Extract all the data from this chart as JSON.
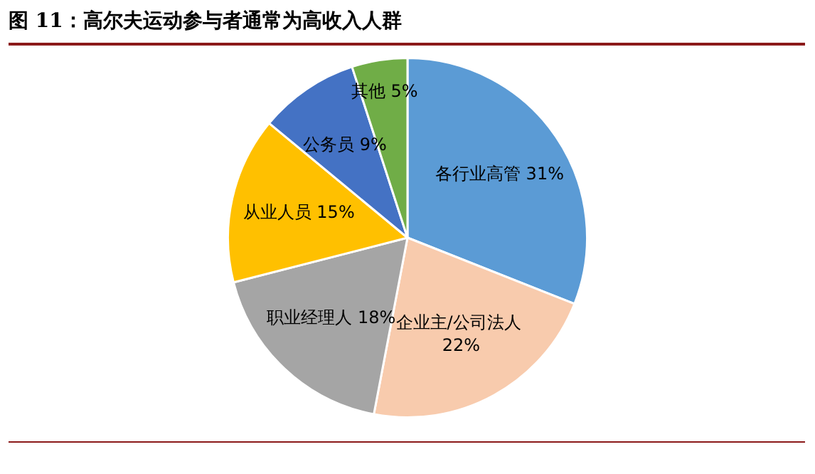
{
  "chart_data": {
    "type": "pie",
    "title": "图 11：高尔夫运动参与者通常为高收入人群",
    "categories": [
      "各行业高管",
      "企业主/公司法人",
      "职业经理人",
      "从业人员",
      "公务员",
      "其他"
    ],
    "values": [
      31,
      22,
      18,
      15,
      9,
      5
    ],
    "colors": [
      "#5b9bd5",
      "#f8cbad",
      "#a5a5a5",
      "#ffc000",
      "#4472c4",
      "#70ad47"
    ],
    "value_labels": [
      "31%",
      "22%",
      "18%",
      "15%",
      "9%",
      "5%"
    ],
    "legend": false
  }
}
